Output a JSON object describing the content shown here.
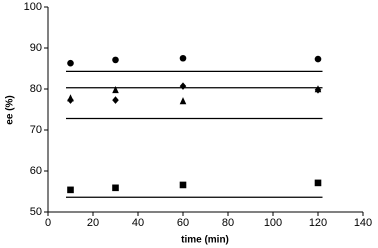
{
  "chart_data": {
    "type": "scatter",
    "x_label": "time (min)",
    "y_label": "ee (%)",
    "xlim": [
      0,
      140
    ],
    "xticks": [
      0,
      20,
      40,
      60,
      80,
      100,
      120,
      140
    ],
    "ylim": [
      50,
      100
    ],
    "yticks": [
      50,
      60,
      70,
      80,
      90,
      100
    ],
    "series": [
      {
        "marker": "circle",
        "color": "#000000",
        "x": [
          10,
          30,
          60,
          120
        ],
        "values": [
          86.3,
          87.1,
          87.5,
          87.3
        ]
      },
      {
        "marker": "triangle",
        "color": "#000000",
        "x": [
          10,
          30,
          60,
          120
        ],
        "values": [
          77.8,
          79.8,
          77.1,
          80.0
        ]
      },
      {
        "marker": "diamond",
        "color": "#000000",
        "x": [
          10,
          30,
          60,
          120
        ],
        "values": [
          77.3,
          77.3,
          80.7,
          79.8
        ]
      },
      {
        "marker": "square",
        "color": "#000000",
        "x": [
          10,
          30,
          60,
          120
        ],
        "values": [
          55.4,
          55.9,
          56.6,
          57.1
        ]
      }
    ],
    "reference_lines": [
      {
        "color": "#000000",
        "x": [
          8,
          122
        ],
        "values": [
          84.3,
          84.3
        ]
      },
      {
        "color": "#000000",
        "x": [
          8,
          122
        ],
        "values": [
          80.3,
          80.3
        ]
      },
      {
        "color": "#000000",
        "x": [
          8,
          122
        ],
        "values": [
          72.8,
          72.8
        ]
      },
      {
        "color": "#000000",
        "x": [
          8,
          122
        ],
        "values": [
          53.6,
          53.6
        ]
      }
    ]
  }
}
